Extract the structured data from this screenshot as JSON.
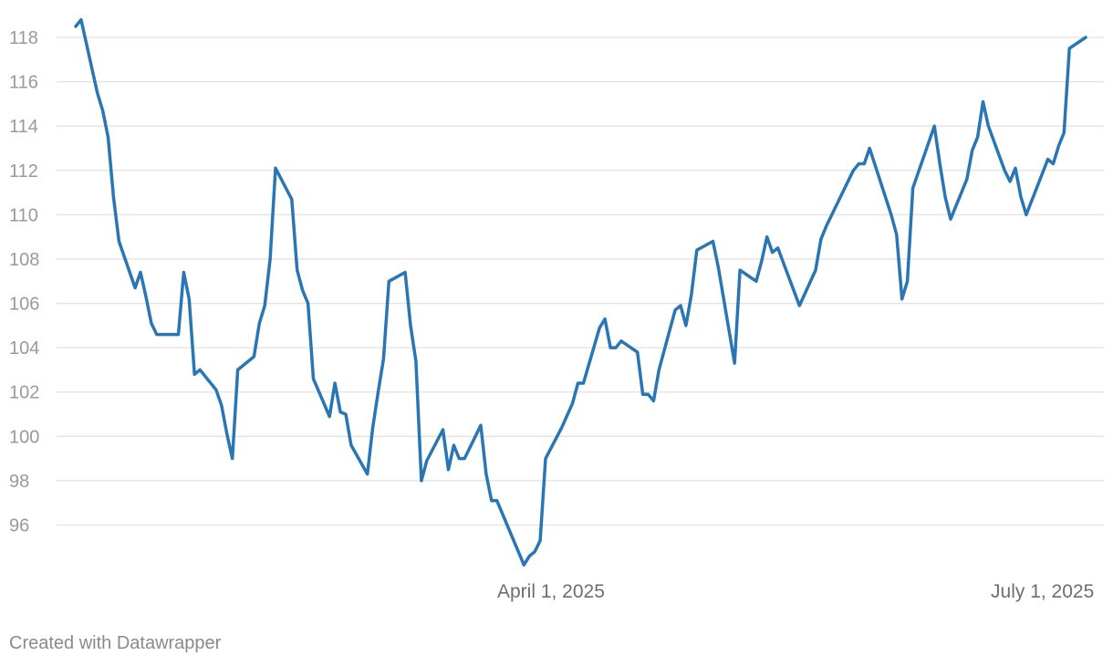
{
  "chart_data": {
    "type": "line",
    "title": "",
    "xlabel": "",
    "ylabel": "",
    "ylim": [
      94,
      119
    ],
    "y_ticks": [
      96,
      98,
      100,
      102,
      104,
      106,
      108,
      110,
      112,
      114,
      116,
      118
    ],
    "x_ticks": [
      {
        "date": "2025-04-01",
        "label": "April 1, 2025"
      },
      {
        "date": "2025-07-01",
        "label": "July 1, 2025"
      }
    ],
    "grid": true,
    "series": [
      {
        "color": "#2a76b5",
        "points": [
          [
            "2025-01-03",
            118.5
          ],
          [
            "2025-01-04",
            118.8
          ],
          [
            "2025-01-07",
            115.5
          ],
          [
            "2025-01-08",
            114.7
          ],
          [
            "2025-01-09",
            113.5
          ],
          [
            "2025-01-10",
            110.8
          ],
          [
            "2025-01-11",
            108.8
          ],
          [
            "2025-01-14",
            106.7
          ],
          [
            "2025-01-15",
            107.4
          ],
          [
            "2025-01-16",
            106.3
          ],
          [
            "2025-01-17",
            105.1
          ],
          [
            "2025-01-18",
            104.6
          ],
          [
            "2025-01-21",
            104.6
          ],
          [
            "2025-01-22",
            104.6
          ],
          [
            "2025-01-23",
            107.4
          ],
          [
            "2025-01-24",
            106.2
          ],
          [
            "2025-01-25",
            102.8
          ],
          [
            "2025-01-26",
            103.0
          ],
          [
            "2025-01-29",
            102.1
          ],
          [
            "2025-01-30",
            101.4
          ],
          [
            "2025-01-31",
            100.1
          ],
          [
            "2025-02-01",
            99.0
          ],
          [
            "2025-02-02",
            103.0
          ],
          [
            "2025-02-05",
            103.6
          ],
          [
            "2025-02-06",
            105.1
          ],
          [
            "2025-02-07",
            105.9
          ],
          [
            "2025-02-08",
            108.0
          ],
          [
            "2025-02-09",
            112.1
          ],
          [
            "2025-02-12",
            110.7
          ],
          [
            "2025-02-13",
            107.5
          ],
          [
            "2025-02-14",
            106.6
          ],
          [
            "2025-02-15",
            106.0
          ],
          [
            "2025-02-16",
            102.6
          ],
          [
            "2025-02-19",
            100.9
          ],
          [
            "2025-02-20",
            102.4
          ],
          [
            "2025-02-21",
            101.1
          ],
          [
            "2025-02-22",
            101.0
          ],
          [
            "2025-02-23",
            99.6
          ],
          [
            "2025-02-26",
            98.3
          ],
          [
            "2025-02-27",
            100.4
          ],
          [
            "2025-02-28",
            102.0
          ],
          [
            "2025-03-01",
            103.5
          ],
          [
            "2025-03-02",
            107.0
          ],
          [
            "2025-03-05",
            107.4
          ],
          [
            "2025-03-06",
            105.0
          ],
          [
            "2025-03-07",
            103.4
          ],
          [
            "2025-03-08",
            98.0
          ],
          [
            "2025-03-09",
            98.9
          ],
          [
            "2025-03-12",
            100.3
          ],
          [
            "2025-03-13",
            98.5
          ],
          [
            "2025-03-14",
            99.6
          ],
          [
            "2025-03-15",
            99.0
          ],
          [
            "2025-03-16",
            99.0
          ],
          [
            "2025-03-19",
            100.5
          ],
          [
            "2025-03-20",
            98.3
          ],
          [
            "2025-03-21",
            97.1
          ],
          [
            "2025-03-22",
            97.1
          ],
          [
            "2025-03-27",
            94.2
          ],
          [
            "2025-03-28",
            94.6
          ],
          [
            "2025-03-29",
            94.8
          ],
          [
            "2025-03-30",
            95.3
          ],
          [
            "2025-03-31",
            99.0
          ],
          [
            "2025-04-03",
            100.4
          ],
          [
            "2025-04-05",
            101.5
          ],
          [
            "2025-04-06",
            102.4
          ],
          [
            "2025-04-07",
            102.4
          ],
          [
            "2025-04-10",
            104.9
          ],
          [
            "2025-04-11",
            105.3
          ],
          [
            "2025-04-12",
            104.0
          ],
          [
            "2025-04-13",
            104.0
          ],
          [
            "2025-04-14",
            104.3
          ],
          [
            "2025-04-17",
            103.8
          ],
          [
            "2025-04-18",
            101.9
          ],
          [
            "2025-04-19",
            101.9
          ],
          [
            "2025-04-20",
            101.6
          ],
          [
            "2025-04-21",
            103.0
          ],
          [
            "2025-04-24",
            105.7
          ],
          [
            "2025-04-25",
            105.9
          ],
          [
            "2025-04-26",
            105.0
          ],
          [
            "2025-04-27",
            106.4
          ],
          [
            "2025-04-28",
            108.4
          ],
          [
            "2025-05-01",
            108.8
          ],
          [
            "2025-05-02",
            107.6
          ],
          [
            "2025-05-05",
            103.3
          ],
          [
            "2025-05-06",
            107.5
          ],
          [
            "2025-05-09",
            107.0
          ],
          [
            "2025-05-10",
            107.9
          ],
          [
            "2025-05-11",
            109.0
          ],
          [
            "2025-05-12",
            108.3
          ],
          [
            "2025-05-13",
            108.5
          ],
          [
            "2025-05-17",
            105.9
          ],
          [
            "2025-05-20",
            107.5
          ],
          [
            "2025-05-21",
            108.9
          ],
          [
            "2025-05-22",
            109.5
          ],
          [
            "2025-05-26",
            111.5
          ],
          [
            "2025-05-27",
            112.0
          ],
          [
            "2025-05-28",
            112.3
          ],
          [
            "2025-05-29",
            112.3
          ],
          [
            "2025-05-30",
            113.0
          ],
          [
            "2025-06-03",
            110.0
          ],
          [
            "2025-06-04",
            109.1
          ],
          [
            "2025-06-05",
            106.2
          ],
          [
            "2025-06-06",
            107.0
          ],
          [
            "2025-06-07",
            111.2
          ],
          [
            "2025-06-10",
            113.3
          ],
          [
            "2025-06-11",
            114.0
          ],
          [
            "2025-06-12",
            112.3
          ],
          [
            "2025-06-13",
            110.8
          ],
          [
            "2025-06-14",
            109.8
          ],
          [
            "2025-06-17",
            111.6
          ],
          [
            "2025-06-18",
            112.9
          ],
          [
            "2025-06-19",
            113.5
          ],
          [
            "2025-06-20",
            115.1
          ],
          [
            "2025-06-21",
            114.0
          ],
          [
            "2025-06-24",
            112.0
          ],
          [
            "2025-06-25",
            111.5
          ],
          [
            "2025-06-26",
            112.1
          ],
          [
            "2025-06-27",
            110.8
          ],
          [
            "2025-06-28",
            110.0
          ],
          [
            "2025-07-02",
            112.5
          ],
          [
            "2025-07-03",
            112.3
          ],
          [
            "2025-07-04",
            113.1
          ],
          [
            "2025-07-05",
            113.7
          ],
          [
            "2025-07-06",
            117.5
          ],
          [
            "2025-07-09",
            118.0
          ]
        ]
      }
    ]
  },
  "footer": {
    "credit": "Created with Datawrapper"
  }
}
